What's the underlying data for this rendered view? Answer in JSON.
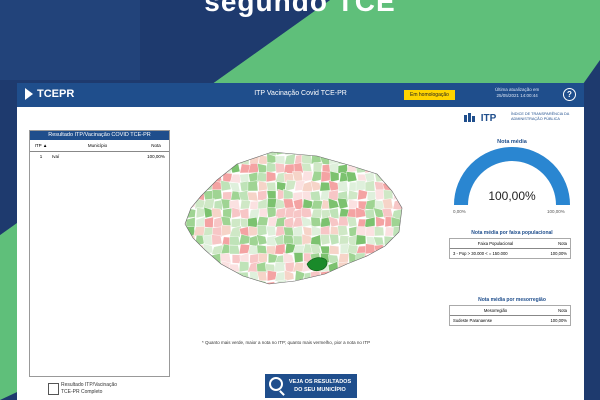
{
  "heading": "segundo TCE",
  "colors": {
    "brand": "#1f4e8c",
    "badge": "#ffd400",
    "gauge": "#2a86d1",
    "bg_dark": "#1e3a6e",
    "bg_green": "#5fbf7a"
  },
  "topbar": {
    "logo": "TCEPR",
    "title": "ITP Vacinação Covid TCE-PR",
    "badge": "Em homologação",
    "update_line1": "Última atualização em",
    "update_line2": "25/05/2021 14:00:44",
    "help_icon": "question-circle-icon",
    "help_label": "?"
  },
  "results_panel": {
    "title": "Resultado ITP/Vacinação COVID TCE-PR",
    "columns": [
      "ITP",
      "Município",
      "Nota"
    ],
    "sort_indicator": "▲",
    "rows": [
      {
        "rank": "1",
        "municipio": "Ivaí",
        "nota": "100,00%"
      }
    ]
  },
  "map": {
    "footnote": "* Quanto mais verde, maior a nota no ITP; quanto mais vermelho, pior a nota no ITP"
  },
  "itp_logo": {
    "name": "ITP",
    "subtitle_line1": "ÍNDICE DE TRANSPARÊNCIA DA",
    "subtitle_line2": "ADMINISTRAÇÃO PÚBLICA"
  },
  "gauge": {
    "title": "Nota média",
    "value_text": "100,00%",
    "value_fraction": 1.0,
    "min_label": "0,00%",
    "max_label": "100,00%"
  },
  "faixa_table": {
    "title": "Nota média por faixa populacional",
    "col_a": "Faixa Populacional",
    "col_b": "Nota",
    "row_a": "3 - Pop > 30.000 < = 150.000",
    "row_b": "100,00%"
  },
  "meso_table": {
    "title": "Nota média por mesorregião",
    "col_a": "Mesorregião",
    "col_b": "Nota",
    "row_a": "Sudeste Paranaense",
    "row_b": "100,00%"
  },
  "bottom_link": {
    "line1": "Resultado ITP/Vacinação",
    "line2": "TCE-PR Completo"
  },
  "cta": {
    "line1": "VEJA OS RESULTADOS",
    "line2": "DO SEU MUNICÍPIO"
  }
}
